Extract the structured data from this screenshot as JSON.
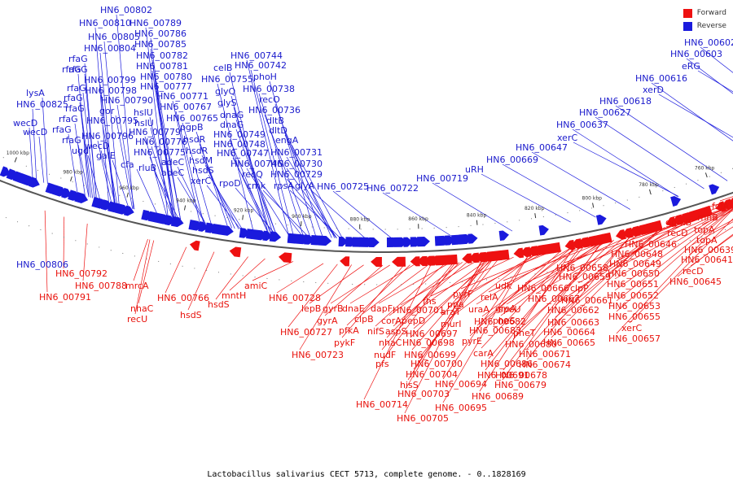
{
  "caption": "Lactobacillus salivarius CECT 5713, complete genome. - 0..1828169",
  "legend": {
    "forward_label": "Forward",
    "reverse_label": "Reverse",
    "forward_color": "#ee1111",
    "reverse_color": "#1a1add"
  },
  "kbp_ticks": [
    "1000 kbp",
    "980 kbp",
    "960 kbp",
    "940 kbp",
    "920 kbp",
    "900 kbp",
    "880 kbp",
    "860 kbp",
    "840 kbp",
    "820 kbp",
    "800 kbp",
    "780 kbp",
    "760 kbp",
    "740 kbp"
  ],
  "reverse_labels": [
    "HN6_00802",
    "HN6_00810",
    "HN6_00789",
    "HN6_00805",
    "HN6_00786",
    "HN6_00804",
    "HN6_00785",
    "rfaG",
    "HN6_00782",
    "rfaG",
    "rfaG",
    "HN6_00781",
    "HN6_00799",
    "HN6_00780",
    "rfaG",
    "HN6_00798",
    "HN6_00777",
    "lysA",
    "rfaG",
    "HN6_00790",
    "HN6_00771",
    "HN6_00825",
    "rfaG",
    "gor",
    "hslU",
    "HN6_00767",
    "wecD",
    "rfaG",
    "HN6_00795",
    "hslU",
    "HN6_00765",
    "wecD",
    "rfaG",
    "HN6_00796",
    "HN6_00779",
    "pgpB",
    "rfaG",
    "wecD",
    "HN6_00776",
    "hsdR",
    "ugd",
    "galE",
    "HN6_00775",
    "hsdR",
    "cfa",
    "rluB",
    "adeC",
    "hsdM",
    "adeC",
    "hsdS",
    "xerC",
    "celB",
    "HN6_00755",
    "glyQ",
    "glyS",
    "dnaG",
    "dnaG",
    "HN6_00749",
    "HN6_00748",
    "HN6_00747",
    "rpoD",
    "HN6_00744",
    "HN6_00742",
    "phoH",
    "HN6_00738",
    "recO",
    "HN6_00736",
    "dltB",
    "dltD",
    "engA",
    "HN6_00731",
    "HN6_00730",
    "HN6_00729",
    "HN6_00746",
    "recQ",
    "cmk",
    "rpsA",
    "glyA",
    "HN6_00725",
    "HN6_00722",
    "HN6_00719",
    "uRH",
    "HN6_00669",
    "HN6_00647",
    "xerC",
    "HN6_00637",
    "HN6_00627",
    "HN6_00618",
    "xerD",
    "HN6_00616",
    "eRG",
    "HN6_00603",
    "HN6_00602",
    "HN6_00806"
  ],
  "forward_labels": [
    "HN6_00792",
    "HN6_00788",
    "HN6_00791",
    "mrcA",
    "nhaC",
    "recU",
    "HN6_00766",
    "hsdS",
    "hsdS",
    "mntH",
    "amiC",
    "HN6_00728",
    "lepB",
    "gyrB",
    "HN6_00727",
    "gyrA",
    "dnaE",
    "HN6_00723",
    "pfkA",
    "pykF",
    "clpB",
    "nifS",
    "dapF",
    "corA",
    "aspS",
    "nhaC",
    "nudF",
    "pfs",
    "HN6_00701",
    "pepD",
    "HN6_00697",
    "HN6_00698",
    "HN6_00699",
    "HN6_00700",
    "HN6_00704",
    "hisS",
    "HN6_00703",
    "HN6_00714",
    "HN6_00705",
    "fhs",
    "araT",
    "murI",
    "ppa",
    "pyrF",
    "pyrE",
    "HN6_00682",
    "HN6_00683",
    "carA",
    "HN6_00686",
    "HN6_00694",
    "HN6_00691",
    "HN6_00695",
    "HN6_00689",
    "uraA",
    "relA",
    "greA",
    "HN6_00680",
    "pheS",
    "pheT",
    "HN6_00674",
    "HN6_00678",
    "HN6_00679",
    "HN6_00671",
    "udk",
    "spoU",
    "HN6_00666",
    "HN6_00667",
    "HN6_00662",
    "HN6_00663",
    "HN6_00664",
    "HN6_00665",
    "clpP",
    "HN6_00661",
    "HN6_00659",
    "HN6_00658",
    "HN6_00652",
    "HN6_00653",
    "HN6_00655",
    "xerC",
    "HN6_00657",
    "HN6_00651",
    "HN6_00650",
    "HN6_00649",
    "HN6_00648",
    "HN6_00646",
    "gpmB",
    "recD",
    "HN6_00645",
    "HN6_00641",
    "HN6_00639",
    "topA",
    "topA",
    "rnhB",
    "folA",
    "recD"
  ]
}
